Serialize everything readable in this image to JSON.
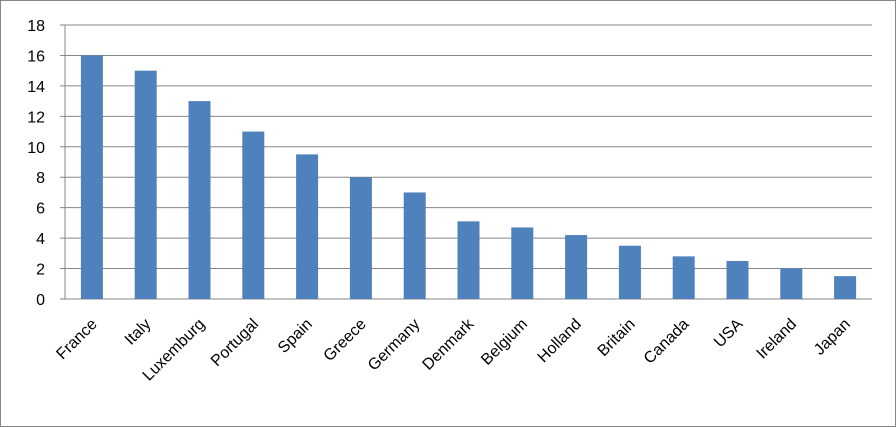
{
  "chart_data": {
    "type": "bar",
    "categories": [
      "France",
      "Italy",
      "Luxemburg",
      "Portugal",
      "Spain",
      "Greece",
      "Germany",
      "Denmark",
      "Belgium",
      "Holland",
      "Britain",
      "Canada",
      "USA",
      "Ireland",
      "Japan"
    ],
    "values": [
      16,
      15,
      13,
      11,
      9.5,
      8,
      7,
      5.1,
      4.7,
      4.2,
      3.5,
      2.8,
      2.5,
      2,
      1.5
    ],
    "color": "#4f81bd",
    "ylim": [
      0,
      18
    ],
    "yticks": [
      0,
      2,
      4,
      6,
      8,
      10,
      12,
      14,
      16,
      18
    ],
    "grid": true
  }
}
